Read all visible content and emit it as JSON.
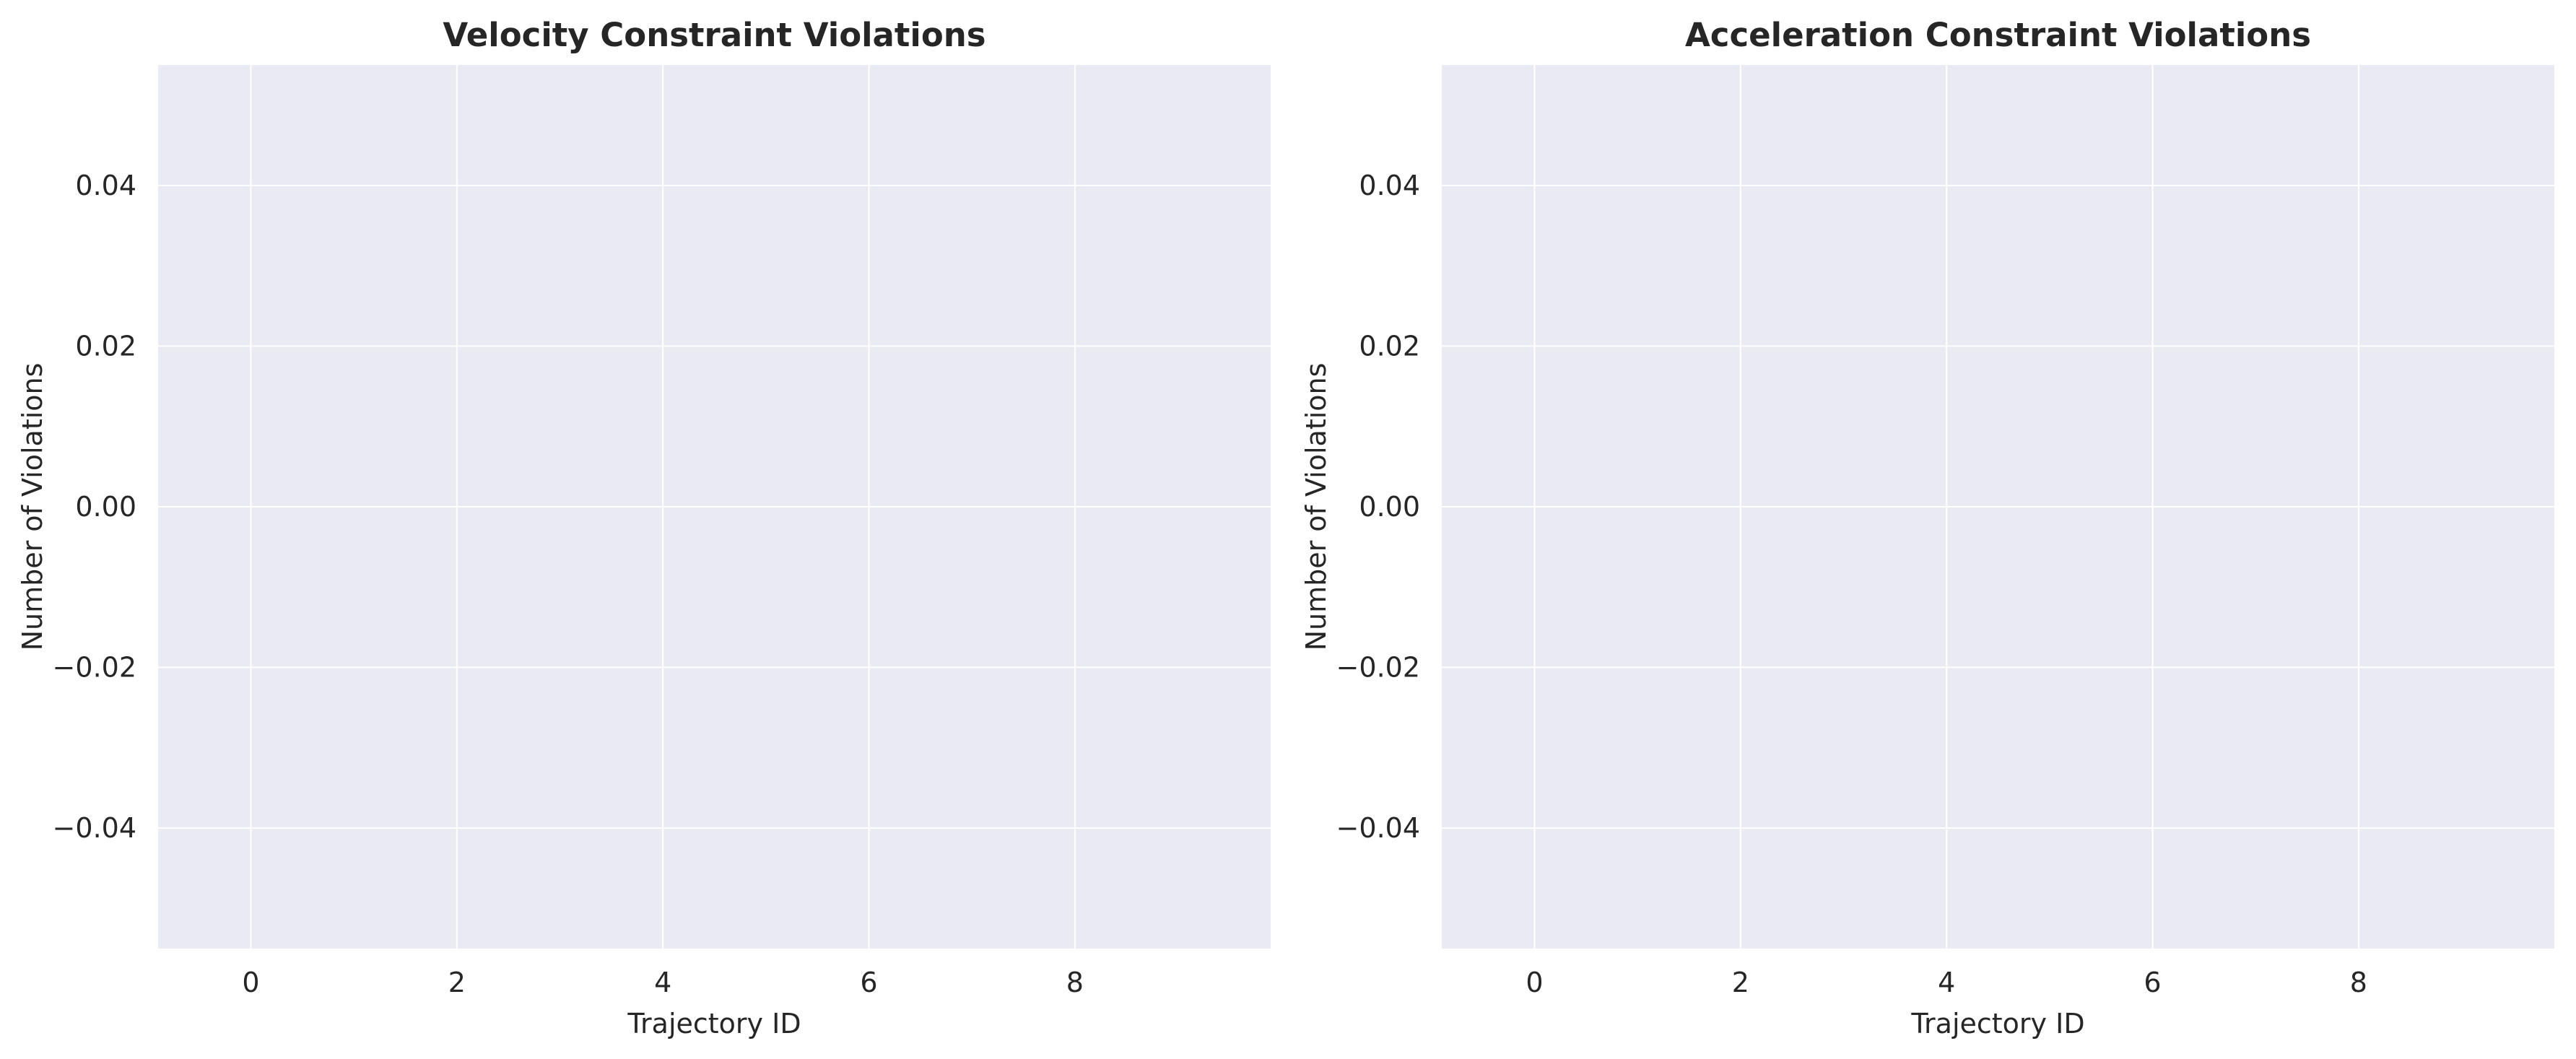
{
  "colors": {
    "plot_background": "#EAEAF2",
    "grid": "#FFFFFF",
    "text": "#262626",
    "figure_background": "#FFFFFF"
  },
  "chart_data": [
    {
      "type": "bar",
      "title": "Velocity Constraint Violations",
      "xlabel": "Trajectory ID",
      "ylabel": "Number of Violations",
      "categories": [],
      "values": [],
      "xlim": [
        -0.9,
        9.9
      ],
      "ylim": [
        -0.055,
        0.055
      ],
      "xticks": [
        0,
        2,
        4,
        6,
        8
      ],
      "xtick_labels": [
        "0",
        "2",
        "4",
        "6",
        "8"
      ],
      "yticks": [
        -0.04,
        -0.02,
        0.0,
        0.02,
        0.04
      ],
      "ytick_labels": [
        "−0.04",
        "−0.02",
        "0.00",
        "0.02",
        "0.04"
      ],
      "grid": true
    },
    {
      "type": "bar",
      "title": "Acceleration Constraint Violations",
      "xlabel": "Trajectory ID",
      "ylabel": "Number of Violations",
      "categories": [],
      "values": [],
      "xlim": [
        -0.9,
        9.9
      ],
      "ylim": [
        -0.055,
        0.055
      ],
      "xticks": [
        0,
        2,
        4,
        6,
        8
      ],
      "xtick_labels": [
        "0",
        "2",
        "4",
        "6",
        "8"
      ],
      "yticks": [
        -0.04,
        -0.02,
        0.0,
        0.02,
        0.04
      ],
      "ytick_labels": [
        "−0.04",
        "−0.02",
        "0.00",
        "0.02",
        "0.04"
      ],
      "grid": true
    }
  ]
}
